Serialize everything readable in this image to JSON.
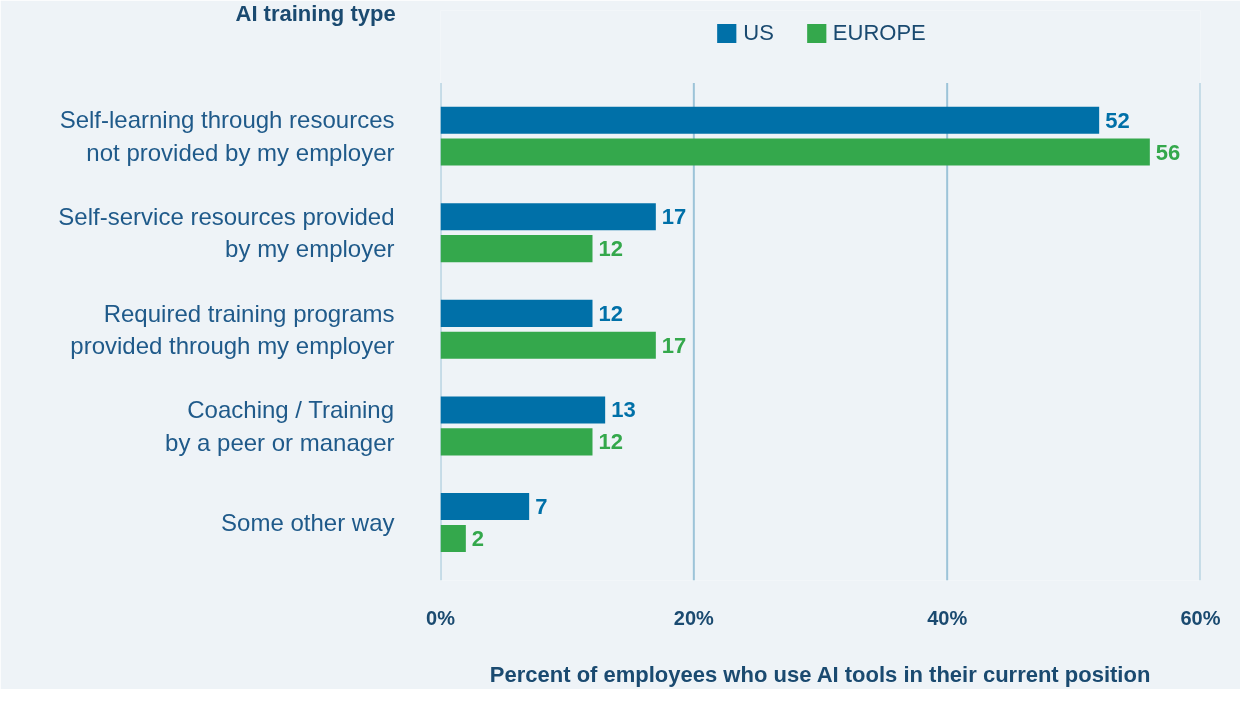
{
  "chart_data": {
    "type": "bar",
    "orientation": "horizontal",
    "ylabel": "AI training type",
    "xlabel": "Percent of employees who use AI tools in their current position",
    "categories": [
      "Self-learning through resources\nnot provided by my employer",
      "Self-service resources provided\nby my employer",
      "Required training programs\nprovided through my employer",
      "Coaching / Training\nby a peer or manager",
      "Some other way"
    ],
    "series": [
      {
        "name": "US",
        "color": "#0070a8",
        "values": [
          52,
          17,
          12,
          13,
          7
        ]
      },
      {
        "name": "EUROPE",
        "color": "#34a84c",
        "values": [
          56,
          12,
          17,
          12,
          2
        ]
      }
    ],
    "xlim": [
      0,
      60
    ],
    "xticks": [
      {
        "value": 0,
        "label": "0%"
      },
      {
        "value": 20,
        "label": "20%"
      },
      {
        "value": 40,
        "label": "40%"
      },
      {
        "value": 60,
        "label": "60%"
      }
    ],
    "grid": "x",
    "legend": "top",
    "data_labels": true
  }
}
